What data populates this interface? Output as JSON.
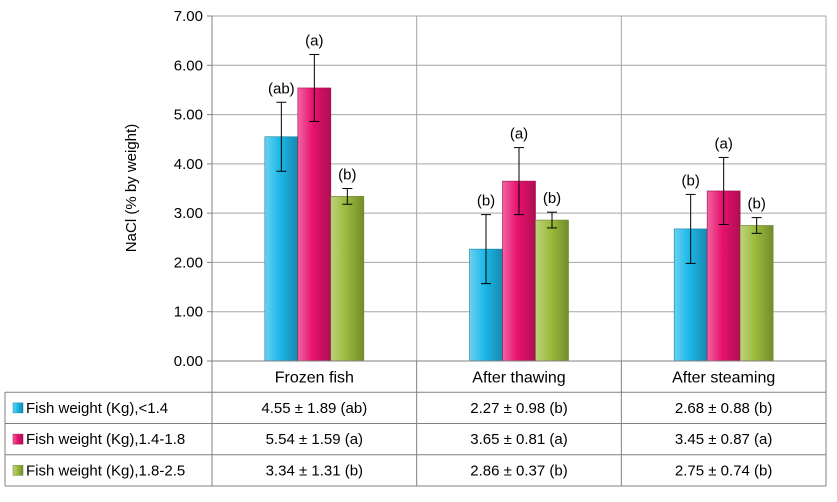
{
  "chart_data": {
    "type": "bar",
    "categories": [
      "Frozen fish",
      "After thawing",
      "After steaming"
    ],
    "ylabel": "NaCl (% by weight)",
    "xlabel": "",
    "ylim": [
      0,
      7
    ],
    "yticks": [
      "0.00",
      "1.00",
      "2.00",
      "3.00",
      "4.00",
      "5.00",
      "6.00",
      "7.00"
    ],
    "grid": true,
    "legend_placement": "data-table-left",
    "series": [
      {
        "name": "Fish weight (Kg),<1.4",
        "color": "#1CB8E8",
        "values": [
          4.55,
          2.27,
          2.68
        ],
        "errors": [
          0.7,
          0.7,
          0.7
        ],
        "labels": [
          "(ab)",
          "(b)",
          "(b)"
        ],
        "table": [
          "4.55 ± 1.89 (ab)",
          "2.27 ± 0.98 (b)",
          "2.68 ± 0.88 (b)"
        ]
      },
      {
        "name": "Fish weight (Kg),1.4-1.8",
        "color": "#E8126E",
        "values": [
          5.54,
          3.65,
          3.45
        ],
        "errors": [
          0.68,
          0.68,
          0.68
        ],
        "labels": [
          "(a)",
          "(a)",
          "(a)"
        ],
        "table": [
          "5.54 ± 1.59 (a)",
          "3.65 ± 0.81 (a)",
          "3.45 ± 0.87 (a)"
        ]
      },
      {
        "name": "Fish weight (Kg),1.8-2.5",
        "color": "#9BBB3C",
        "values": [
          3.34,
          2.86,
          2.75
        ],
        "errors": [
          0.16,
          0.16,
          0.16
        ],
        "labels": [
          "(b)",
          "(b)",
          "(b)"
        ],
        "table": [
          "3.34 ± 1.31 (b)",
          "2.86 ± 0.37 (b)",
          "2.75 ± 0.74 (b)"
        ]
      }
    ]
  }
}
